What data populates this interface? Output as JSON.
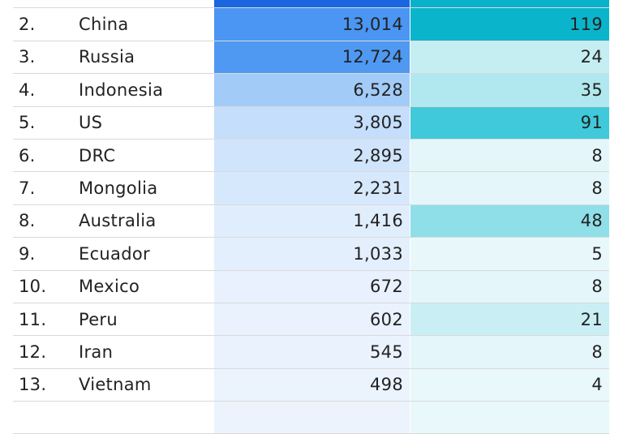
{
  "chart_data": {
    "type": "table",
    "rows": [
      {
        "rank": "",
        "country": "",
        "value_a": "",
        "value_b": "",
        "bg_a": "#1a66e0",
        "bg_b": "#0ab2c9"
      },
      {
        "rank": "2.",
        "country": "China",
        "value_a": "13,014",
        "value_b": "119",
        "bg_a": "#4a96f2",
        "bg_b": "#0ab5cc"
      },
      {
        "rank": "3.",
        "country": "Russia",
        "value_a": "12,724",
        "value_b": "24",
        "bg_a": "#4f99f2",
        "bg_b": "#c5eef3"
      },
      {
        "rank": "4.",
        "country": "Indonesia",
        "value_a": "6,528",
        "value_b": "35",
        "bg_a": "#a2cbf8",
        "bg_b": "#b1e8ef"
      },
      {
        "rank": "5.",
        "country": "US",
        "value_a": "3,805",
        "value_b": "91",
        "bg_a": "#c5defb",
        "bg_b": "#40c9da"
      },
      {
        "rank": "6.",
        "country": "DRC",
        "value_a": "2,895",
        "value_b": "8",
        "bg_a": "#d0e4fb",
        "bg_b": "#e4f6f9"
      },
      {
        "rank": "7.",
        "country": "Mongolia",
        "value_a": "2,231",
        "value_b": "8",
        "bg_a": "#d6e8fc",
        "bg_b": "#e4f6f9"
      },
      {
        "rank": "8.",
        "country": "Australia",
        "value_a": "1,416",
        "value_b": "48",
        "bg_a": "#e0edfd",
        "bg_b": "#8fdfe9"
      },
      {
        "rank": "9.",
        "country": "Ecuador",
        "value_a": "1,033",
        "value_b": "5",
        "bg_a": "#e4effd",
        "bg_b": "#e8f8fa"
      },
      {
        "rank": "10.",
        "country": "Mexico",
        "value_a": "672",
        "value_b": "8",
        "bg_a": "#e8f1fd",
        "bg_b": "#e4f6f9"
      },
      {
        "rank": "11.",
        "country": "Peru",
        "value_a": "602",
        "value_b": "21",
        "bg_a": "#e9f2fd",
        "bg_b": "#c9eff4"
      },
      {
        "rank": "12.",
        "country": "Iran",
        "value_a": "545",
        "value_b": "8",
        "bg_a": "#eaf2fd",
        "bg_b": "#e4f6f9"
      },
      {
        "rank": "13.",
        "country": "Vietnam",
        "value_a": "498",
        "value_b": "4",
        "bg_a": "#ebf3fd",
        "bg_b": "#e9f8fa"
      },
      {
        "rank": "",
        "country": "",
        "value_a": "",
        "value_b": "",
        "bg_a": "#ecf3fd",
        "bg_b": "#e9f8fa"
      }
    ]
  }
}
